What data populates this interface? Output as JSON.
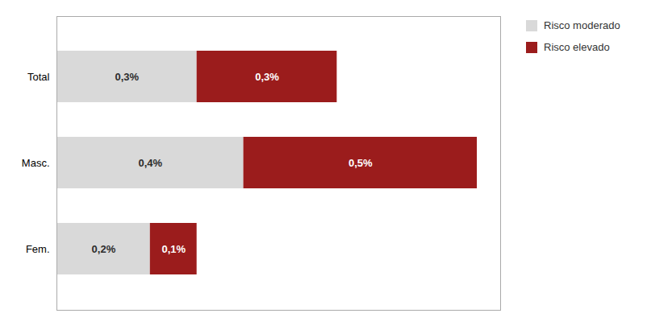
{
  "chart_data": {
    "type": "bar",
    "orientation": "horizontal",
    "stacked": true,
    "categories": [
      "Total",
      "Masc.",
      "Fem."
    ],
    "series": [
      {
        "name": "Risco moderado",
        "color": "#d9d9d9",
        "values": [
          0.3,
          0.4,
          0.2
        ],
        "value_labels": [
          "0,3%",
          "0,4%",
          "0,2%"
        ]
      },
      {
        "name": "Risco elevado",
        "color": "#9b1c1c",
        "values": [
          0.3,
          0.5,
          0.1
        ],
        "value_labels": [
          "0,3%",
          "0,5%",
          "0,1%"
        ]
      }
    ],
    "xlim": [
      0,
      0.95
    ],
    "data_labels": true,
    "tick_labels": "y",
    "legend": "right"
  }
}
